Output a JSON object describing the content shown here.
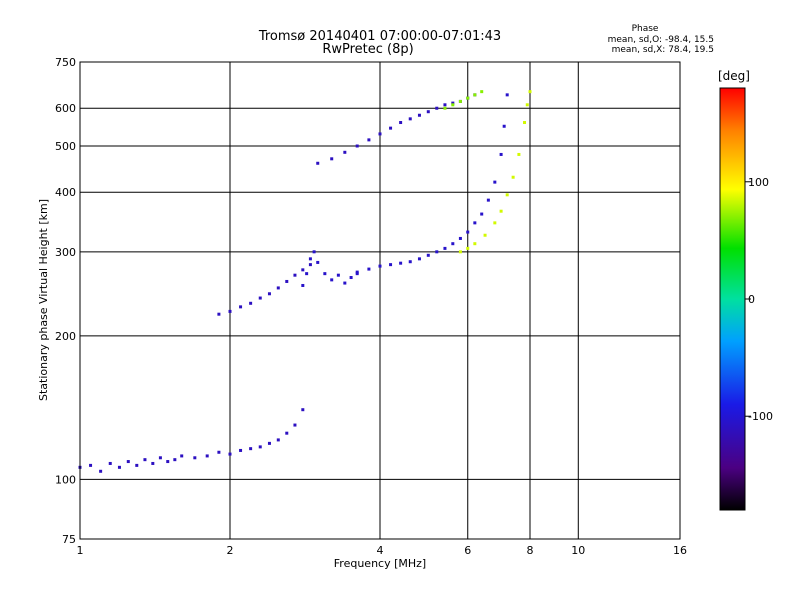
{
  "chart_data": {
    "type": "scatter",
    "title": "Tromsø 20140401 07:00:00-07:01:43",
    "subtitle": "RwPretec (8p)",
    "xlabel": "Frequency [MHz]",
    "ylabel": "Stationary phase Virtual Height [km]",
    "x_scale": "log",
    "y_scale": "log",
    "xlim": [
      1,
      16
    ],
    "ylim": [
      75,
      750
    ],
    "x_ticks": [
      1,
      2,
      4,
      6,
      8,
      10,
      16
    ],
    "y_ticks": [
      75,
      100,
      200,
      300,
      400,
      500,
      600,
      750
    ],
    "grid": true,
    "phase_stats": {
      "title": "Phase",
      "line_o": "mean, sd,O: -98.4, 15.5",
      "line_x": "mean, sd,X:  78.4, 19.5"
    },
    "colorbar": {
      "label": "[deg]",
      "range": [
        -180,
        180
      ],
      "ticks": [
        100,
        0,
        -100
      ],
      "tick_labels": [
        "100",
        "0",
        "-100"
      ]
    },
    "traces": [
      {
        "name": "",
        "phase": -110,
        "x": [
          1.0,
          1.05,
          1.1,
          1.15,
          1.2,
          1.25,
          1.3,
          1.35,
          1.4,
          1.45,
          1.5,
          1.55,
          1.6,
          1.7,
          1.8,
          1.9,
          2.0,
          2.1,
          2.2,
          2.3,
          2.4,
          2.5,
          2.6,
          2.7,
          2.8
        ],
        "y": [
          106,
          107,
          104,
          108,
          106,
          109,
          107,
          110,
          108,
          111,
          109,
          110,
          112,
          111,
          112,
          114,
          113,
          115,
          116,
          117,
          119,
          121,
          125,
          130,
          140
        ]
      },
      {
        "name": "",
        "phase": -110,
        "x": [
          1.9,
          2.0,
          2.1,
          2.2,
          2.3,
          2.4,
          2.5,
          2.6,
          2.7,
          2.8,
          2.9
        ],
        "y": [
          222,
          225,
          230,
          234,
          240,
          245,
          252,
          260,
          268,
          275,
          282
        ]
      },
      {
        "name": "",
        "phase": -105,
        "x": [
          2.8,
          2.85,
          2.9,
          2.95,
          3.0,
          3.1,
          3.2,
          3.3,
          3.4,
          3.5,
          3.6
        ],
        "y": [
          255,
          270,
          290,
          300,
          285,
          270,
          262,
          268,
          258,
          265,
          270
        ]
      },
      {
        "name": "",
        "phase": -105,
        "x": [
          3.6,
          3.8,
          4.0,
          4.2,
          4.4,
          4.6,
          4.8,
          5.0,
          5.2,
          5.4,
          5.6,
          5.8,
          6.0,
          6.2,
          6.4,
          6.6,
          6.8,
          7.0,
          7.1,
          7.2
        ],
        "y": [
          272,
          276,
          280,
          282,
          284,
          286,
          290,
          295,
          300,
          305,
          312,
          320,
          330,
          345,
          360,
          385,
          420,
          480,
          550,
          640
        ]
      },
      {
        "name": "",
        "phase": -110,
        "x": [
          3.0,
          3.2,
          3.4,
          3.6,
          3.8,
          4.0,
          4.2,
          4.4,
          4.6,
          4.8,
          5.0,
          5.2,
          5.4,
          5.6,
          5.8,
          6.0,
          6.2
        ],
        "y": [
          460,
          470,
          485,
          500,
          515,
          530,
          545,
          560,
          570,
          580,
          590,
          600,
          610,
          615,
          620,
          630,
          640
        ]
      },
      {
        "name": "",
        "phase": 85,
        "x": [
          5.8,
          6.0,
          6.2,
          6.5,
          6.8,
          7.0,
          7.2,
          7.4,
          7.6,
          7.8,
          7.9,
          8.0
        ],
        "y": [
          300,
          305,
          312,
          325,
          345,
          365,
          395,
          430,
          480,
          560,
          610,
          650
        ]
      },
      {
        "name": "",
        "phase": 70,
        "x": [
          5.4,
          5.6,
          5.8,
          6.0,
          6.2,
          6.4
        ],
        "y": [
          600,
          610,
          620,
          630,
          640,
          650
        ]
      }
    ]
  }
}
